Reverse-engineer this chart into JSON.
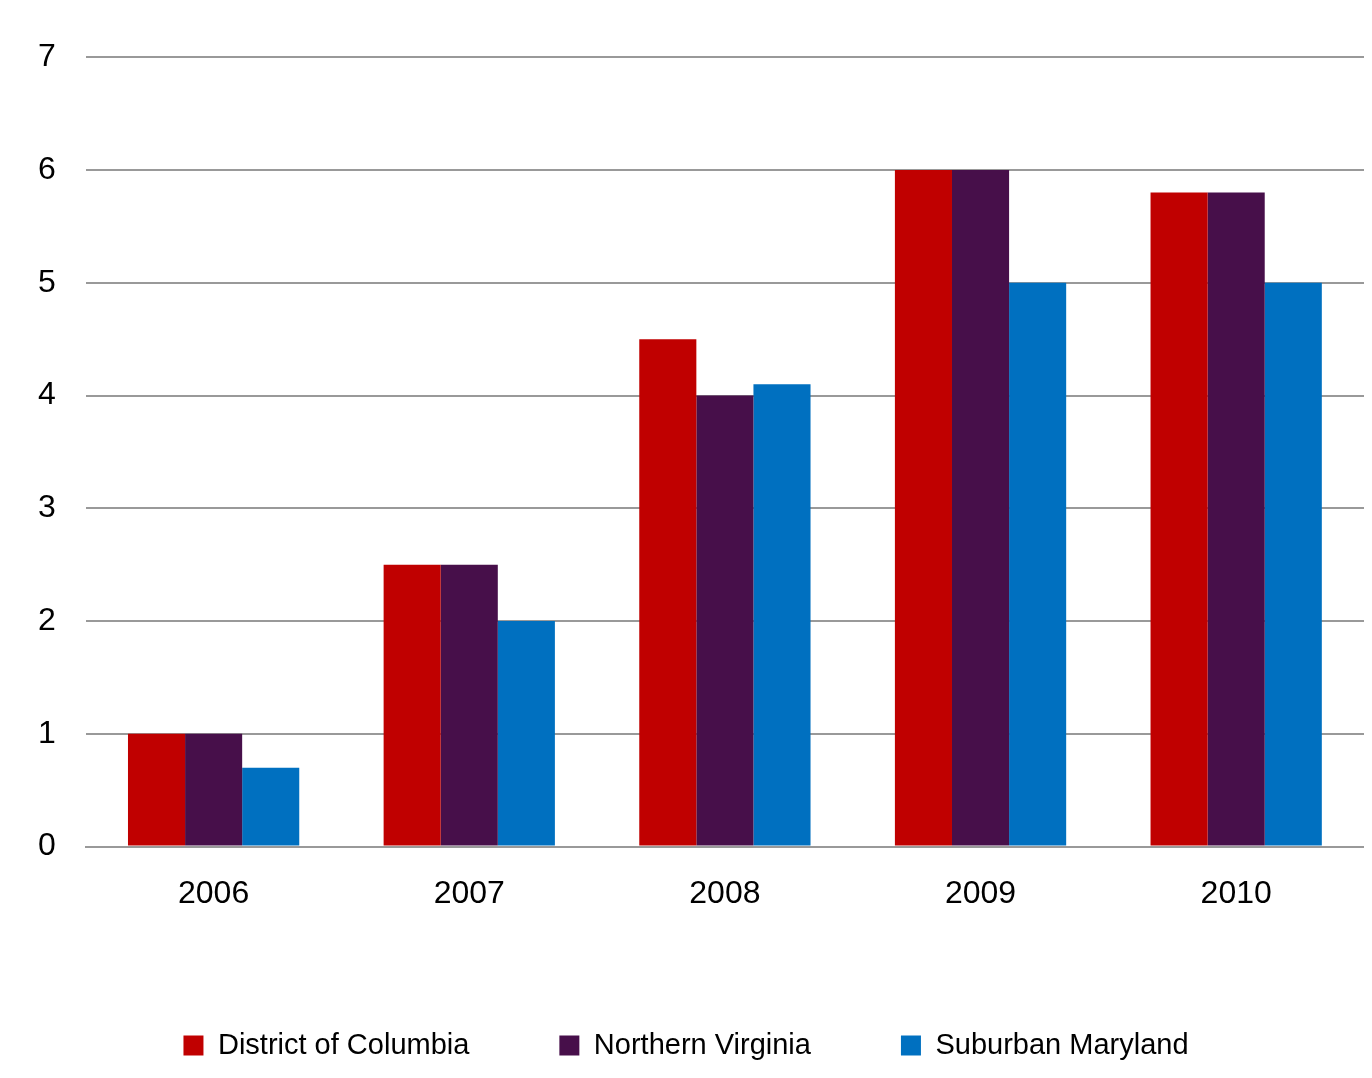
{
  "chart_data": {
    "type": "bar",
    "categories": [
      "2006",
      "2007",
      "2008",
      "2009",
      "2010"
    ],
    "series": [
      {
        "name": "District of Columbia",
        "color": "#c00000",
        "values": [
          1,
          2.5,
          4.5,
          6,
          5.8
        ]
      },
      {
        "name": "Northern Virginia",
        "color": "#470f4a",
        "values": [
          1,
          2.5,
          4,
          6,
          5.8
        ]
      },
      {
        "name": "Suburban Maryland",
        "color": "#0070c0",
        "values": [
          0.7,
          2,
          4.1,
          5,
          5
        ]
      }
    ],
    "ylim": [
      0,
      7
    ],
    "yticks": [
      0,
      1,
      2,
      3,
      4,
      5,
      6,
      7
    ],
    "grid": "y",
    "legend": "bottom"
  }
}
